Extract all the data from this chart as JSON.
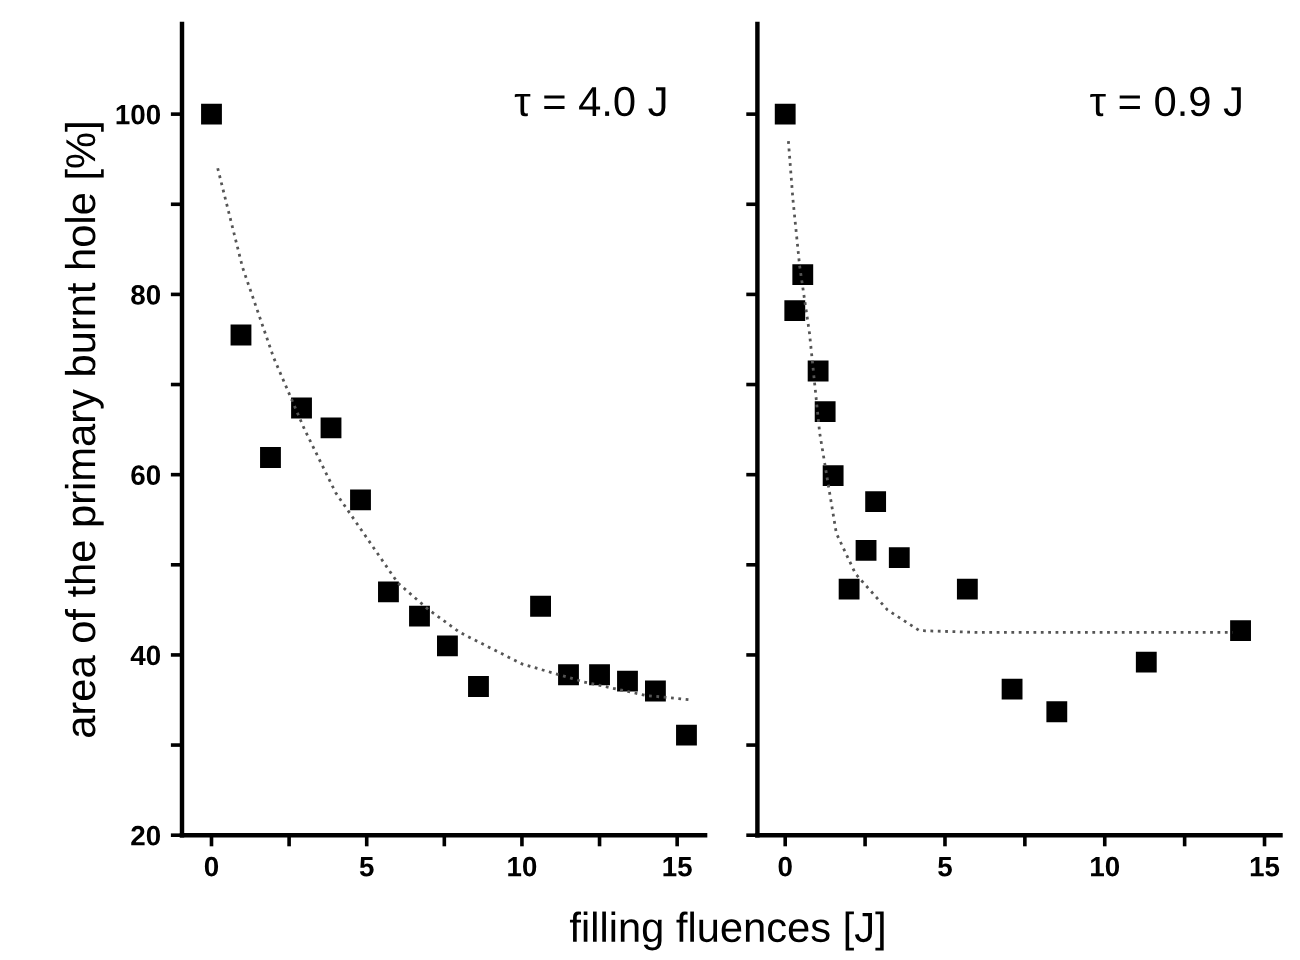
{
  "chart_data": [
    {
      "type": "scatter",
      "xlabel": "filling fluences [J]",
      "ylabel": "area of the primary burnt hole [%]",
      "annotations": [
        "τ = 4.0 J"
      ],
      "marker": "square",
      "xlim": [
        -0.95,
        15.9
      ],
      "ylim": [
        20,
        110
      ],
      "xticks": [
        0,
        {
          "value": 2.5,
          "label": null
        },
        5,
        {
          "value": 7.5,
          "label": null
        },
        10,
        {
          "value": 12.5,
          "label": null
        },
        15
      ],
      "yticks": [
        20,
        {
          "value": 30,
          "label": null
        },
        40,
        {
          "value": 50,
          "label": null
        },
        60,
        {
          "value": 70,
          "label": null
        },
        80,
        {
          "value": 90,
          "label": null
        },
        100
      ],
      "grid": false,
      "legend": false,
      "series": [
        {
          "color": "#000000",
          "x": [
            0,
            0.95,
            1.9,
            2.9,
            3.85,
            4.8,
            5.7,
            6.7,
            7.6,
            8.6,
            10.6,
            11.5,
            12.5,
            13.4,
            14.3,
            15.3
          ],
          "values": [
            100,
            75.5,
            61.9,
            67.4,
            65.2,
            57.2,
            47,
            44.3,
            41,
            36.5,
            45.4,
            37.8,
            37.8,
            37.1,
            36,
            31.1
          ]
        },
        {
          "type": "line",
          "line_style": "dotted",
          "marker": "none",
          "color": "#555555",
          "x": [
            0.2,
            1,
            2,
            3,
            4,
            5,
            6,
            7,
            8,
            10,
            12,
            14,
            15.5
          ],
          "values": [
            94,
            83,
            73,
            65,
            58,
            53,
            48,
            45,
            42.5,
            39,
            37,
            35.5,
            35
          ]
        }
      ]
    },
    {
      "type": "scatter",
      "annotations": [
        "τ = 0.9 J"
      ],
      "marker": "square",
      "tick_labels": "x",
      "xlim": [
        -0.87,
        15.5
      ],
      "ylim": [
        20,
        110
      ],
      "xticks": [
        0,
        {
          "value": 2.5,
          "label": null
        },
        5,
        {
          "value": 7.5,
          "label": null
        },
        10,
        {
          "value": 12.5,
          "label": null
        },
        15
      ],
      "yticks": [
        {
          "value": 20,
          "label": null
        },
        {
          "value": 30,
          "label": null
        },
        {
          "value": 40,
          "label": null
        },
        {
          "value": 50,
          "label": null
        },
        {
          "value": 60,
          "label": null
        },
        {
          "value": 70,
          "label": null
        },
        {
          "value": 80,
          "label": null
        },
        {
          "value": 90,
          "label": null
        },
        {
          "value": 100,
          "label": null
        }
      ],
      "grid": false,
      "legend": false,
      "series": [
        {
          "color": "#000000",
          "x": [
            0,
            0.55,
            0.3,
            1.03,
            1.25,
            1.5,
            2.83,
            2.53,
            3.57,
            2.0,
            5.7,
            7.1,
            8.5,
            11.3,
            14.25
          ],
          "values": [
            100,
            82.2,
            78.2,
            71.5,
            67,
            59.9,
            57,
            51.6,
            50.8,
            47.3,
            47.3,
            36.2,
            33.7,
            39.2,
            42.7
          ]
        },
        {
          "type": "line",
          "line_style": "dotted",
          "marker": "none",
          "color": "#555555",
          "x": [
            0.1,
            0.24,
            0.45,
            0.76,
            1.08,
            1.6,
            2.2,
            3.2,
            4.2,
            6,
            10,
            14
          ],
          "values": [
            97,
            90.6,
            83.2,
            75.7,
            64.6,
            53.5,
            49,
            45,
            42.7,
            42.5,
            42.5,
            42.5
          ]
        }
      ]
    }
  ]
}
